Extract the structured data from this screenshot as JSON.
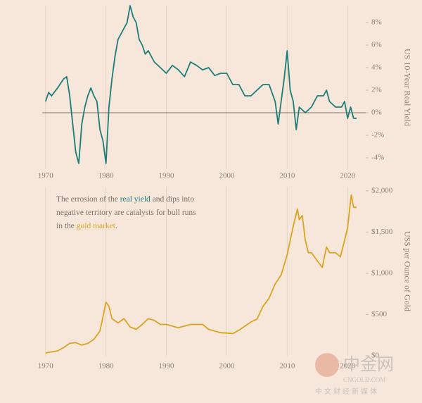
{
  "chart_data": [
    {
      "type": "line",
      "ylabel": "US 10-Year Real Yield",
      "xlim": [
        1967.7,
        2023
      ],
      "xticks": [
        1970,
        1980,
        1990,
        2000,
        2010,
        2020
      ],
      "ylim": [
        -5,
        9.5
      ],
      "yticks": [
        {
          "value": -4,
          "label": "-4%"
        },
        {
          "value": -2,
          "label": "-2%"
        },
        {
          "value": 0,
          "label": "0%"
        },
        {
          "value": 2,
          "label": "2%"
        },
        {
          "value": 4,
          "label": "4%"
        },
        {
          "value": 6,
          "label": "6%"
        },
        {
          "value": 8,
          "label": "8%"
        }
      ],
      "grid": "x",
      "zero_line": true,
      "series": [
        {
          "color": "#1b7d78",
          "x": [
            1970,
            1970.5,
            1971,
            1972,
            1973,
            1973.5,
            1974,
            1974.5,
            1975,
            1975.5,
            1976,
            1976.5,
            1977,
            1977.5,
            1978,
            1978.5,
            1979,
            1979.5,
            1980,
            1980.5,
            1981,
            1981.5,
            1982,
            1983,
            1983.5,
            1984,
            1984.5,
            1985,
            1985.5,
            1986,
            1986.5,
            1987,
            1988,
            1989,
            1990,
            1991,
            1992,
            1993,
            1994,
            1995,
            1996,
            1997,
            1998,
            1999,
            2000,
            2001,
            2002,
            2003,
            2004,
            2005,
            2006,
            2007,
            2008,
            2008.5,
            2009,
            2009.5,
            2010,
            2010.5,
            2011,
            2011.5,
            2012,
            2013,
            2014,
            2015,
            2016,
            2016.5,
            2017,
            2018,
            2019,
            2019.5,
            2020,
            2020.5,
            2021,
            2021.5
          ],
          "values": [
            1.0,
            1.8,
            1.5,
            2.2,
            3.0,
            3.2,
            1.5,
            -1,
            -3.5,
            -4.5,
            -1,
            0.5,
            1.5,
            2.2,
            1.5,
            1.0,
            -1.5,
            -2.5,
            -4.5,
            0.5,
            3,
            5,
            6.5,
            7.5,
            8,
            9.5,
            8.5,
            8,
            6.5,
            6,
            5.2,
            5.5,
            4.5,
            4,
            3.5,
            4.2,
            3.8,
            3.2,
            4.5,
            4.2,
            3.8,
            4,
            3.3,
            3.5,
            3.5,
            2.5,
            2.5,
            1.5,
            1.5,
            2,
            2.5,
            2.5,
            1,
            -1,
            1,
            3,
            5.5,
            2,
            1,
            -1.5,
            0.5,
            0,
            0.5,
            1.5,
            1.5,
            2,
            1,
            0.5,
            0.5,
            1,
            -0.5,
            0.5,
            -0.5,
            -0.5
          ]
        }
      ]
    },
    {
      "type": "line",
      "ylabel": "US$ per Ounce of Gold",
      "xlim": [
        1967.7,
        2023
      ],
      "xticks": [
        1970,
        1980,
        1990,
        2000,
        2010,
        2020
      ],
      "ylim": [
        0,
        2050
      ],
      "yticks": [
        {
          "value": 0,
          "label": "$0"
        },
        {
          "value": 500,
          "label": "$500"
        },
        {
          "value": 1000,
          "label": "$1,000"
        },
        {
          "value": 1500,
          "label": "$1,500"
        },
        {
          "value": 2000,
          "label": "$2,000"
        }
      ],
      "grid": "x",
      "annotation": [
        [
          {
            "text": "The errosion of the "
          },
          {
            "text": "real yield",
            "color": "#1b7d78"
          },
          {
            "text": " and dips into"
          }
        ],
        [
          {
            "text": "negative territory are catalysts for bull runs"
          }
        ],
        [
          {
            "text": "in the "
          },
          {
            "text": "gold market",
            "color": "#d9a521"
          },
          {
            "text": "."
          }
        ]
      ],
      "series": [
        {
          "color": "#d9a521",
          "x": [
            1970,
            1972,
            1973,
            1974,
            1975,
            1976,
            1977,
            1978,
            1979,
            1980,
            1980.5,
            1981,
            1982,
            1983,
            1984,
            1985,
            1986,
            1987,
            1988,
            1989,
            1990,
            1992,
            1994,
            1996,
            1997,
            1999,
            2001,
            2002,
            2003,
            2004,
            2005,
            2006,
            2007,
            2008,
            2009,
            2010,
            2011,
            2011.7,
            2012,
            2012.5,
            2013,
            2013.5,
            2014,
            2015,
            2015.8,
            2016.5,
            2017,
            2018,
            2018.8,
            2019.5,
            2020,
            2020.6,
            2021,
            2021.5
          ],
          "values": [
            35,
            60,
            100,
            150,
            160,
            130,
            150,
            200,
            300,
            650,
            600,
            450,
            400,
            450,
            350,
            320,
            380,
            450,
            430,
            380,
            380,
            340,
            380,
            380,
            320,
            280,
            270,
            310,
            360,
            410,
            445,
            600,
            700,
            870,
            980,
            1225,
            1570,
            1780,
            1650,
            1700,
            1400,
            1250,
            1250,
            1150,
            1070,
            1320,
            1250,
            1250,
            1200,
            1400,
            1550,
            1950,
            1800,
            1800
          ]
        }
      ]
    }
  ],
  "watermark": [
    "中金网",
    "CNGOLD.COM",
    "中文财经新媒体"
  ]
}
